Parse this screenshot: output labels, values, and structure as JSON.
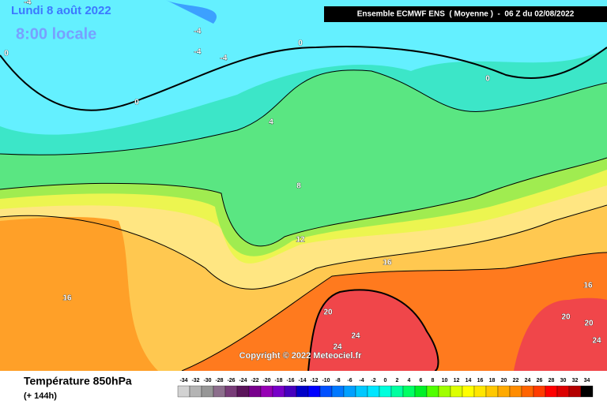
{
  "header": {
    "date": "Lundi 8 août 2022",
    "time": "8:00 locale",
    "model": "Ensemble ECMWF ENS  ( Moyenne )  -  06 Z du 02/08/2022"
  },
  "copyright": "Copyright © 2022 Meteociel.fr",
  "footer": {
    "title": "Température 850hPa",
    "lead": "(+ 144h)"
  },
  "contour_labels": [
    -4,
    -4,
    -4,
    -4,
    0,
    0,
    0,
    0,
    4,
    8,
    12,
    16,
    16,
    16,
    20,
    20,
    20,
    24,
    24,
    24
  ],
  "legend": {
    "labels": [
      -34,
      -32,
      -30,
      -28,
      -26,
      -24,
      -22,
      -20,
      -18,
      -16,
      -14,
      -12,
      -10,
      -8,
      -6,
      -4,
      -2,
      0,
      2,
      4,
      6,
      8,
      10,
      12,
      14,
      16,
      18,
      20,
      22,
      24,
      26,
      28,
      30,
      32,
      34
    ],
    "colors": [
      "#d2d2d2",
      "#b4b4b4",
      "#969696",
      "#8c6e8c",
      "#783c78",
      "#5a145a",
      "#78008c",
      "#9600b4",
      "#7800c8",
      "#4600be",
      "#0000c8",
      "#0000ff",
      "#0050ff",
      "#0078ff",
      "#00a0ff",
      "#00c8ff",
      "#00e6ff",
      "#00ffdc",
      "#00ffa0",
      "#00ff64",
      "#00f028",
      "#50ff00",
      "#a0ff00",
      "#dcff00",
      "#ffff00",
      "#ffe600",
      "#ffc800",
      "#ffaa00",
      "#ff8c00",
      "#ff6400",
      "#ff3c00",
      "#ff0000",
      "#dc0000",
      "#b40000",
      "#000000"
    ]
  }
}
